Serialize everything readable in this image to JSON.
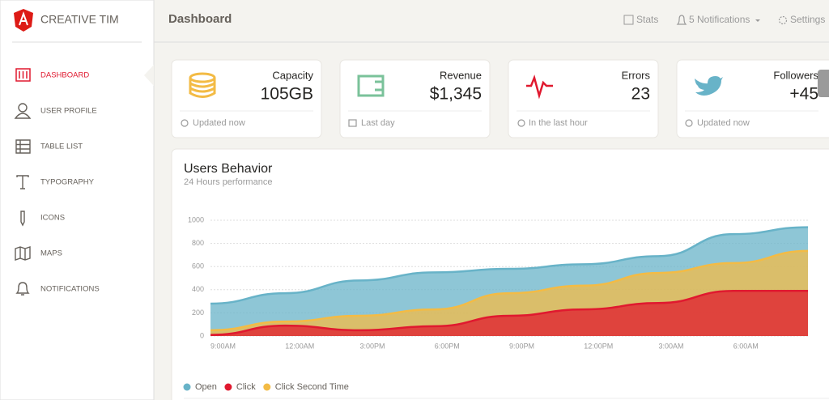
{
  "brand": "CREATIVE TIM",
  "nav": [
    "DASHBOARD",
    "USER PROFILE",
    "TABLE LIST",
    "TYPOGRAPHY",
    "ICONS",
    "MAPS",
    "NOTIFICATIONS"
  ],
  "navbar": {
    "title": "Dashboard",
    "links": [
      "Stats",
      "5 Notifications",
      "Settings"
    ]
  },
  "cards": [
    {
      "title": "Capacity",
      "value": "105GB",
      "footer": "Updated now"
    },
    {
      "title": "Revenue",
      "value": "$1,345",
      "footer": "Last day"
    },
    {
      "title": "Errors",
      "value": "23",
      "footer": "In the last hour"
    },
    {
      "title": "Followers",
      "value": "+45",
      "footer": "Updated now"
    }
  ],
  "chart_data": {
    "type": "area",
    "title": "Users Behavior",
    "subtitle": "24 Hours performance",
    "categories": [
      "9:00AM",
      "12:00AM",
      "3:00PM",
      "6:00PM",
      "9:00PM",
      "12:00PM",
      "3:00AM",
      "6:00AM",
      null
    ],
    "series": [
      {
        "name": "Open",
        "color": "#68b3c8",
        "values": [
          280,
          370,
          480,
          550,
          580,
          620,
          690,
          880,
          940
        ]
      },
      {
        "name": "Click",
        "color": "#e0192f",
        "values": [
          10,
          90,
          50,
          85,
          175,
          230,
          285,
          390,
          390
        ]
      },
      {
        "name": "Click Second Time",
        "color": "#f3bb45",
        "values": [
          50,
          125,
          175,
          230,
          370,
          435,
          545,
          630,
          735
        ]
      }
    ],
    "ylim": [
      0,
      1000
    ],
    "yticks": [
      0,
      200,
      400,
      600,
      800,
      1000
    ],
    "grid": true
  }
}
